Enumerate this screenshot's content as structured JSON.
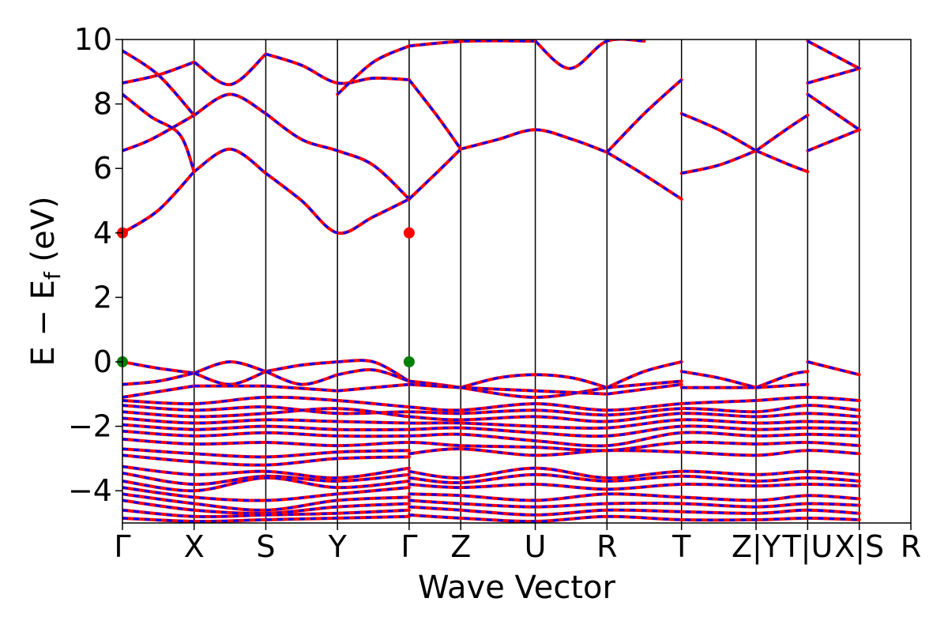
{
  "chart_data": {
    "type": "line",
    "title": "",
    "xlabel": "Wave Vector",
    "ylabel": "E − E_f (eV)",
    "ylabel_parts": {
      "main": "E  −  E",
      "sub": "f",
      "unit": " (eV)"
    },
    "ylim": [
      -5,
      10
    ],
    "yticks": [
      -4,
      -2,
      0,
      2,
      4,
      6,
      8,
      10
    ],
    "ytick_labels": [
      "−4",
      "−2",
      "0",
      "2",
      "4",
      "6",
      "8",
      "10"
    ],
    "x_range": [
      0,
      2.75
    ],
    "kpoint_positions": [
      0,
      0.25,
      0.5,
      0.75,
      1.0,
      1.18,
      1.44,
      1.69,
      1.95,
      2.21,
      2.39,
      2.57,
      2.75
    ],
    "kpoint_labels": [
      "Γ",
      "X",
      "S",
      "Y",
      "Γ",
      "Z",
      "U",
      "R",
      "T",
      "Z|Y",
      "T|U",
      "X|S",
      "R"
    ],
    "grid": false,
    "legend": "none",
    "colors": {
      "spin_up": "#ff0000",
      "spin_down": "#0000ff",
      "cbm": "#ff0000",
      "vbm": "#008000"
    },
    "series": [
      {
        "x": [
          0,
          0.125,
          0.25
        ],
        "y": [
          4.0,
          4.7,
          5.9
        ]
      },
      {
        "x": [
          0.25,
          0.375,
          0.5
        ],
        "y": [
          5.9,
          6.6,
          5.85
        ]
      },
      {
        "x": [
          0.5,
          0.625,
          0.75,
          0.875,
          1.0
        ],
        "y": [
          5.85,
          5.0,
          4.0,
          4.5,
          5.05
        ]
      },
      {
        "x": [
          0,
          0.1,
          0.25
        ],
        "y": [
          6.55,
          6.9,
          7.65
        ]
      },
      {
        "x": [
          0.25,
          0.375,
          0.5
        ],
        "y": [
          7.65,
          8.3,
          7.7
        ]
      },
      {
        "x": [
          0.5,
          0.625,
          0.75,
          0.875,
          1.0
        ],
        "y": [
          7.7,
          6.9,
          6.55,
          6.1,
          5.05
        ]
      },
      {
        "x": [
          0,
          0.1,
          0.2,
          0.25
        ],
        "y": [
          8.3,
          7.6,
          7.05,
          5.9
        ]
      },
      {
        "x": [
          0,
          0.125,
          0.25
        ],
        "y": [
          8.65,
          8.9,
          9.3
        ]
      },
      {
        "x": [
          0.25,
          0.375,
          0.5
        ],
        "y": [
          9.3,
          8.6,
          9.55
        ]
      },
      {
        "x": [
          0.5,
          0.625,
          0.75,
          0.875,
          1.0
        ],
        "y": [
          9.55,
          9.2,
          8.65,
          8.8,
          8.75
        ]
      },
      {
        "x": [
          0,
          0.125,
          0.25
        ],
        "y": [
          9.65,
          8.9,
          7.65
        ]
      },
      {
        "x": [
          0.75,
          0.875,
          1.0
        ],
        "y": [
          8.3,
          9.3,
          9.8
        ]
      },
      {
        "x": [
          1.0,
          1.1,
          1.18
        ],
        "y": [
          5.05,
          5.9,
          6.6
        ]
      },
      {
        "x": [
          1.18,
          1.31,
          1.44,
          1.57,
          1.69
        ],
        "y": [
          6.6,
          6.9,
          7.2,
          6.9,
          6.5
        ]
      },
      {
        "x": [
          1.69,
          1.82,
          1.95
        ],
        "y": [
          6.5,
          5.8,
          5.05
        ]
      },
      {
        "x": [
          1.69,
          1.82,
          1.95
        ],
        "y": [
          6.5,
          7.7,
          8.75
        ]
      },
      {
        "x": [
          1.0,
          1.1,
          1.18
        ],
        "y": [
          8.75,
          7.6,
          6.6
        ]
      },
      {
        "x": [
          1.0,
          1.2,
          1.44
        ],
        "y": [
          9.8,
          9.95,
          9.95
        ]
      },
      {
        "x": [
          1.44,
          1.56,
          1.69,
          1.82
        ],
        "y": [
          9.95,
          9.1,
          9.95,
          9.95
        ]
      },
      {
        "x": [
          1.95,
          2.08,
          2.21
        ],
        "y": [
          5.85,
          6.1,
          6.55
        ]
      },
      {
        "x": [
          1.95,
          2.08,
          2.21
        ],
        "y": [
          7.7,
          7.2,
          6.55
        ]
      },
      {
        "x": [
          2.21,
          2.33,
          2.39
        ],
        "y": [
          6.55,
          6.1,
          5.9
        ]
      },
      {
        "x": [
          2.21,
          2.33,
          2.39
        ],
        "y": [
          6.55,
          7.3,
          7.65
        ]
      },
      {
        "x": [
          2.39,
          2.57
        ],
        "y": [
          6.55,
          7.2
        ]
      },
      {
        "x": [
          2.39,
          2.57
        ],
        "y": [
          8.3,
          7.2
        ]
      },
      {
        "x": [
          2.39,
          2.57
        ],
        "y": [
          8.65,
          9.1
        ]
      },
      {
        "x": [
          2.39,
          2.57
        ],
        "y": [
          9.95,
          9.1
        ]
      },
      {
        "x": [
          0,
          0.125,
          0.25
        ],
        "y": [
          0.0,
          -0.2,
          -0.35
        ]
      },
      {
        "x": [
          0.25,
          0.375,
          0.5
        ],
        "y": [
          -0.35,
          0.0,
          -0.3
        ]
      },
      {
        "x": [
          0.5,
          0.625,
          0.75
        ],
        "y": [
          -0.3,
          -0.1,
          0.0
        ]
      },
      {
        "x": [
          0.75,
          0.875,
          1.0
        ],
        "y": [
          0.0,
          0.0,
          -0.6
        ]
      },
      {
        "x": [
          1.0,
          1.1,
          1.18
        ],
        "y": [
          -0.6,
          -0.7,
          -0.8
        ]
      },
      {
        "x": [
          1.18,
          1.31,
          1.44,
          1.57,
          1.69
        ],
        "y": [
          -0.8,
          -0.5,
          -0.4,
          -0.5,
          -0.8
        ]
      },
      {
        "x": [
          1.69,
          1.82,
          1.95
        ],
        "y": [
          -0.8,
          -0.3,
          0.0
        ]
      },
      {
        "x": [
          1.95,
          2.08,
          2.21
        ],
        "y": [
          -0.3,
          -0.5,
          -0.8
        ]
      },
      {
        "x": [
          2.21,
          2.33,
          2.39
        ],
        "y": [
          -0.8,
          -0.4,
          -0.3
        ]
      },
      {
        "x": [
          2.39,
          2.57
        ],
        "y": [
          0.0,
          -0.4
        ]
      },
      {
        "x": [
          0,
          0.125,
          0.25
        ],
        "y": [
          -0.7,
          -0.6,
          -0.35
        ]
      },
      {
        "x": [
          0.25,
          0.375,
          0.5
        ],
        "y": [
          -0.35,
          -0.7,
          -0.3
        ]
      },
      {
        "x": [
          0.5,
          0.625,
          0.75
        ],
        "y": [
          -0.3,
          -0.7,
          -0.4
        ]
      },
      {
        "x": [
          0.75,
          0.875,
          1.0
        ],
        "y": [
          -0.4,
          -0.25,
          -0.6
        ]
      },
      {
        "x": [
          1.0,
          1.18
        ],
        "y": [
          -0.6,
          -0.8
        ]
      },
      {
        "x": [
          1.18,
          1.44,
          1.69
        ],
        "y": [
          -0.8,
          -1.1,
          -0.8
        ]
      },
      {
        "x": [
          1.69,
          1.95
        ],
        "y": [
          -0.8,
          -0.6
        ]
      },
      {
        "x": [
          1.95,
          2.21
        ],
        "y": [
          -0.8,
          -0.8
        ]
      },
      {
        "x": [
          2.21,
          2.39
        ],
        "y": [
          -0.8,
          -0.7
        ]
      },
      {
        "x": [
          0,
          0.25
        ],
        "y": [
          -1.1,
          -0.75
        ]
      },
      {
        "x": [
          0.25,
          0.5
        ],
        "y": [
          -0.75,
          -0.75
        ]
      },
      {
        "x": [
          0.5,
          0.75
        ],
        "y": [
          -0.75,
          -0.9
        ]
      },
      {
        "x": [
          0.75,
          1.0
        ],
        "y": [
          -0.9,
          -0.7
        ]
      },
      {
        "x": [
          1.0,
          1.18
        ],
        "y": [
          -0.7,
          -0.8
        ]
      },
      {
        "x": [
          1.18,
          1.44,
          1.69
        ],
        "y": [
          -0.8,
          -0.9,
          -1.0
        ]
      },
      {
        "x": [
          1.69,
          1.95
        ],
        "y": [
          -1.0,
          -0.7
        ]
      },
      {
        "x": [
          0,
          0.25,
          0.5,
          0.75,
          1.0,
          1.18,
          1.44,
          1.69,
          1.95,
          2.21,
          2.39,
          2.57
        ],
        "y": [
          -1.2,
          -1.3,
          -1.1,
          -1.2,
          -1.4,
          -1.5,
          -1.3,
          -1.5,
          -1.3,
          -1.2,
          -1.1,
          -1.2
        ]
      },
      {
        "x": [
          0,
          0.25,
          0.5,
          0.75,
          1.0,
          1.18,
          1.44,
          1.69,
          1.95,
          2.21,
          2.39,
          2.57
        ],
        "y": [
          -1.35,
          -1.5,
          -1.4,
          -1.6,
          -1.55,
          -1.6,
          -1.5,
          -1.65,
          -1.45,
          -1.55,
          -1.35,
          -1.5
        ]
      },
      {
        "x": [
          0,
          0.25,
          0.5,
          0.75,
          1.0,
          1.18,
          1.44,
          1.69,
          1.95,
          2.21,
          2.39,
          2.57
        ],
        "y": [
          -1.55,
          -1.7,
          -1.6,
          -1.45,
          -1.7,
          -1.8,
          -1.7,
          -1.85,
          -1.6,
          -1.7,
          -1.6,
          -1.7
        ]
      },
      {
        "x": [
          0,
          0.25,
          0.5,
          0.75,
          1.0,
          1.18,
          1.44,
          1.69,
          1.95,
          2.21,
          2.39,
          2.57
        ],
        "y": [
          -1.75,
          -1.9,
          -1.8,
          -1.85,
          -1.9,
          -1.9,
          -2.0,
          -2.05,
          -1.8,
          -1.9,
          -1.85,
          -1.9
        ]
      },
      {
        "x": [
          0,
          0.25,
          0.5,
          0.75,
          1.0,
          1.18,
          1.44,
          1.69,
          1.95,
          2.21,
          2.39,
          2.57
        ],
        "y": [
          -1.95,
          -2.1,
          -2.0,
          -2.1,
          -2.1,
          -2.05,
          -2.2,
          -2.3,
          -2.0,
          -2.1,
          -2.05,
          -2.1
        ]
      },
      {
        "x": [
          0,
          0.25,
          0.5,
          0.75,
          1.0,
          1.18,
          1.44,
          1.69,
          1.95,
          2.21,
          2.39,
          2.57
        ],
        "y": [
          -2.15,
          -2.3,
          -2.2,
          -2.3,
          -2.3,
          -2.25,
          -2.45,
          -2.6,
          -2.2,
          -2.3,
          -2.25,
          -2.3
        ]
      },
      {
        "x": [
          0,
          0.25,
          0.5,
          0.75,
          1.0,
          1.18,
          1.44,
          1.69,
          1.95,
          2.21,
          2.39,
          2.57
        ],
        "y": [
          -2.4,
          -2.55,
          -2.5,
          -2.6,
          -2.5,
          -2.6,
          -2.65,
          -2.75,
          -2.5,
          -2.55,
          -2.5,
          -2.6
        ]
      },
      {
        "x": [
          0,
          0.25,
          0.5,
          0.75,
          1.0
        ],
        "y": [
          -2.7,
          -2.85,
          -2.95,
          -2.8,
          -2.75
        ]
      },
      {
        "x": [
          0,
          0.25,
          0.5,
          0.75,
          1.0
        ],
        "y": [
          -2.9,
          -3.1,
          -3.2,
          -3.0,
          -2.95
        ]
      },
      {
        "x": [
          1.0,
          1.18,
          1.44,
          1.69,
          1.95,
          2.21,
          2.39,
          2.57
        ],
        "y": [
          -2.85,
          -2.7,
          -2.9,
          -2.75,
          -2.8,
          -2.9,
          -2.75,
          -2.85
        ]
      },
      {
        "x": [
          0,
          0.25,
          0.5,
          0.75,
          1.0
        ],
        "y": [
          -3.25,
          -3.5,
          -3.4,
          -3.6,
          -3.3
        ]
      },
      {
        "x": [
          0,
          0.25,
          0.5,
          0.75,
          1.0
        ],
        "y": [
          -3.45,
          -3.8,
          -3.55,
          -3.7,
          -3.5
        ]
      },
      {
        "x": [
          0,
          0.25,
          0.5,
          0.75,
          1.0
        ],
        "y": [
          -3.7,
          -4.0,
          -3.6,
          -3.9,
          -3.7
        ]
      },
      {
        "x": [
          0,
          0.25,
          0.5,
          0.75,
          1.0
        ],
        "y": [
          -3.9,
          -4.2,
          -4.3,
          -4.1,
          -3.9
        ]
      },
      {
        "x": [
          0,
          0.25,
          0.5,
          0.75,
          1.0
        ],
        "y": [
          -4.1,
          -4.4,
          -4.6,
          -4.3,
          -4.2
        ]
      },
      {
        "x": [
          0,
          0.25,
          0.5,
          0.75,
          1.0
        ],
        "y": [
          -4.3,
          -4.6,
          -4.7,
          -4.5,
          -4.4
        ]
      },
      {
        "x": [
          0,
          0.25,
          0.5,
          0.75,
          1.0
        ],
        "y": [
          -4.6,
          -4.8,
          -4.75,
          -4.7,
          -4.6
        ]
      },
      {
        "x": [
          0,
          0.25,
          0.5,
          0.75,
          1.0
        ],
        "y": [
          -4.85,
          -4.95,
          -4.9,
          -4.85,
          -4.8
        ]
      },
      {
        "x": [
          1.0,
          1.18,
          1.44,
          1.69,
          1.95,
          2.21,
          2.39,
          2.57
        ],
        "y": [
          -3.4,
          -3.6,
          -3.3,
          -3.6,
          -3.4,
          -3.5,
          -3.4,
          -3.5
        ]
      },
      {
        "x": [
          1.0,
          1.18,
          1.44,
          1.69,
          1.95,
          2.21,
          2.39,
          2.57
        ],
        "y": [
          -3.6,
          -3.75,
          -3.5,
          -3.7,
          -3.55,
          -3.7,
          -3.6,
          -3.7
        ]
      },
      {
        "x": [
          1.0,
          1.18,
          1.44,
          1.69,
          1.95,
          2.21,
          2.39,
          2.57
        ],
        "y": [
          -3.8,
          -3.9,
          -3.8,
          -3.95,
          -3.8,
          -3.85,
          -3.8,
          -3.85
        ]
      },
      {
        "x": [
          1.0,
          1.18,
          1.44,
          1.69,
          1.95,
          2.21,
          2.39,
          2.57
        ],
        "y": [
          -4.1,
          -4.15,
          -4.3,
          -4.1,
          -4.2,
          -4.3,
          -4.15,
          -4.25
        ]
      },
      {
        "x": [
          1.0,
          1.18,
          1.44,
          1.69,
          1.95,
          2.21,
          2.39,
          2.57
        ],
        "y": [
          -4.3,
          -4.4,
          -4.5,
          -4.4,
          -4.4,
          -4.5,
          -4.4,
          -4.45
        ]
      },
      {
        "x": [
          1.0,
          1.18,
          1.44,
          1.69,
          1.95,
          2.21,
          2.39,
          2.57
        ],
        "y": [
          -4.5,
          -4.6,
          -4.75,
          -4.6,
          -4.65,
          -4.7,
          -4.6,
          -4.7
        ]
      },
      {
        "x": [
          1.0,
          1.18,
          1.44,
          1.69,
          1.95,
          2.21,
          2.39,
          2.57
        ],
        "y": [
          -4.75,
          -4.85,
          -4.95,
          -4.8,
          -4.9,
          -4.9,
          -4.85,
          -4.9
        ]
      }
    ],
    "markers": [
      {
        "label": "CBM",
        "x": 0,
        "y": 4.0,
        "color": "#ff0000"
      },
      {
        "label": "CBM",
        "x": 1.0,
        "y": 4.0,
        "color": "#ff0000"
      },
      {
        "label": "VBM",
        "x": 0,
        "y": 0.0,
        "color": "#008000"
      },
      {
        "label": "VBM",
        "x": 1.0,
        "y": 0.0,
        "color": "#008000"
      }
    ]
  }
}
